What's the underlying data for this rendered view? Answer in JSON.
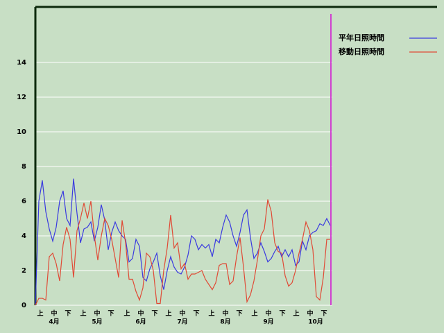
{
  "chart_data": {
    "type": "line",
    "x": [
      0,
      2.5,
      5,
      7.5,
      10,
      12.5,
      15,
      17.5,
      20,
      22.5,
      25,
      27.5,
      30,
      32.5,
      35,
      37.5,
      40,
      42.5,
      45,
      47.5,
      50,
      52.5,
      55,
      57.5,
      60,
      62.5,
      65,
      67.5,
      70,
      72.5,
      75,
      77.5,
      80,
      82.5,
      85,
      87.5,
      90,
      92.5,
      95,
      97.5,
      100,
      102.5,
      105,
      107.5,
      110,
      112.5,
      115,
      117.5,
      120,
      122.5,
      125,
      127.5,
      130,
      132.5,
      135,
      137.5,
      140,
      142.5,
      145,
      147.5,
      150,
      152.5,
      155,
      157.5,
      160,
      162.5,
      165,
      167.5,
      170,
      172.5,
      175,
      177.5,
      180,
      182.5,
      185,
      187.5,
      190,
      192.5,
      195,
      197.5,
      200,
      202.5,
      205,
      207.5,
      210,
      212.5
    ],
    "series": [
      {
        "name": "平年日照時間",
        "color": "#3a3ae0",
        "values": [
          0,
          6.0,
          7.2,
          5.4,
          4.4,
          3.7,
          4.5,
          6.0,
          6.6,
          5.0,
          4.6,
          7.3,
          5.3,
          3.6,
          4.4,
          4.5,
          4.8,
          3.7,
          4.5,
          5.8,
          4.9,
          3.2,
          4.2,
          4.8,
          4.3,
          4.0,
          3.8,
          2.5,
          2.7,
          3.8,
          3.4,
          1.6,
          1.4,
          2.1,
          2.5,
          3.0,
          1.7,
          0.9,
          2.0,
          2.8,
          2.2,
          1.9,
          1.8,
          2.2,
          2.9,
          4.0,
          3.8,
          3.2,
          3.5,
          3.3,
          3.5,
          2.8,
          3.8,
          3.6,
          4.5,
          5.2,
          4.8,
          4.0,
          3.4,
          4.2,
          5.2,
          5.5,
          3.9,
          2.7,
          3.0,
          3.6,
          3.1,
          2.5,
          2.7,
          3.1,
          3.4,
          2.8,
          3.2,
          2.8,
          3.2,
          2.3,
          2.5,
          3.7,
          3.2,
          4.0,
          4.2,
          4.3,
          4.7,
          4.6,
          5.0,
          4.6
        ]
      },
      {
        "name": "移動日照時間",
        "color": "#e04a36",
        "values": [
          0,
          0.4,
          0.4,
          0.3,
          2.8,
          3.0,
          2.4,
          1.4,
          3.5,
          4.5,
          3.8,
          1.6,
          4.3,
          5.0,
          5.9,
          5.0,
          6.0,
          4.0,
          2.6,
          4.0,
          5.0,
          4.6,
          3.8,
          2.7,
          1.6,
          4.9,
          3.6,
          1.5,
          1.5,
          0.8,
          0.3,
          1.0,
          3.0,
          2.8,
          2.0,
          0.1,
          0.1,
          2.0,
          3.3,
          5.2,
          3.3,
          3.6,
          2.1,
          2.4,
          1.5,
          1.8,
          1.8,
          1.9,
          2.0,
          1.5,
          1.2,
          0.9,
          1.3,
          2.3,
          2.4,
          2.4,
          1.2,
          1.4,
          2.8,
          3.9,
          2.2,
          0.2,
          0.6,
          1.4,
          2.6,
          4.0,
          4.4,
          6.1,
          5.4,
          3.6,
          3.1,
          3.0,
          1.7,
          1.1,
          1.3,
          2.0,
          3.0,
          3.8,
          4.8,
          4.3,
          3.2,
          0.5,
          0.3,
          1.6,
          3.8,
          3.8
        ]
      }
    ],
    "xlim": [
      0,
      214
    ],
    "ylim": [
      0,
      17.2
    ],
    "yticks": [
      0,
      2,
      4,
      6,
      8,
      10,
      12,
      14
    ],
    "xticks": [
      {
        "value": 3.5,
        "label": "上"
      },
      {
        "value": 13.5,
        "label": "中"
      },
      {
        "value": 23.5,
        "label": "下"
      },
      {
        "value": 34.5,
        "label": "上"
      },
      {
        "value": 44.5,
        "label": "中"
      },
      {
        "value": 54.5,
        "label": "下"
      },
      {
        "value": 66,
        "label": "上"
      },
      {
        "value": 76,
        "label": "中"
      },
      {
        "value": 86,
        "label": "下"
      },
      {
        "value": 96,
        "label": "上"
      },
      {
        "value": 106,
        "label": "中"
      },
      {
        "value": 116,
        "label": "下"
      },
      {
        "value": 127,
        "label": "上"
      },
      {
        "value": 137,
        "label": "中"
      },
      {
        "value": 147,
        "label": "下"
      },
      {
        "value": 158,
        "label": "上"
      },
      {
        "value": 168,
        "label": "中"
      },
      {
        "value": 178,
        "label": "下"
      },
      {
        "value": 188,
        "label": "上"
      },
      {
        "value": 198,
        "label": "中"
      },
      {
        "value": 208,
        "label": "下"
      }
    ],
    "month_labels": [
      {
        "value": 13.5,
        "label": "4月"
      },
      {
        "value": 44.5,
        "label": "5月"
      },
      {
        "value": 76,
        "label": "6月"
      },
      {
        "value": 106,
        "label": "7月"
      },
      {
        "value": 137,
        "label": "8月"
      },
      {
        "value": 168,
        "label": "9月"
      },
      {
        "value": 202,
        "label": "10月"
      }
    ],
    "grid": true
  }
}
